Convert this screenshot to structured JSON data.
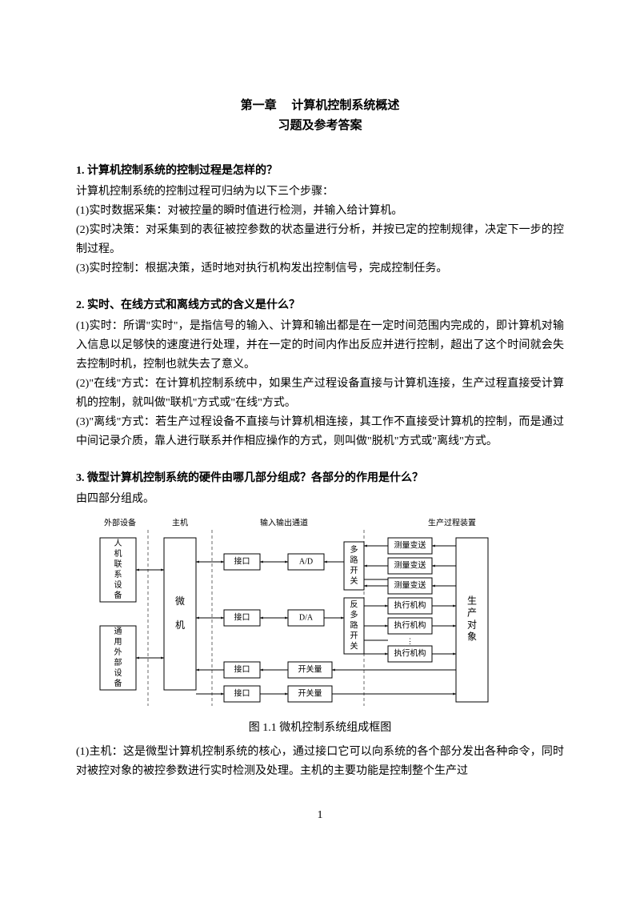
{
  "title": "第一章　 计算机控制系统概述",
  "subtitle": "习题及参考答案",
  "q1": {
    "heading": "1. 计算机控制系统的控制过程是怎样的？",
    "intro": "计算机控制系统的控制过程可归纳为以下三个步骤：",
    "l1": "(1)实时数据采集：对被控量的瞬时值进行检测，并输入给计算机。",
    "l2": "(2)实时决策：对采集到的表征被控参数的状态量进行分析，并按已定的控制规律，决定下一步的控制过程。",
    "l3": "(3)实时控制：根据决策，适时地对执行机构发出控制信号，完成控制任务。"
  },
  "q2": {
    "heading": "2. 实时、在线方式和离线方式的含义是什么？",
    "l1": "(1)实时：所谓\"实时\"，是指信号的输入、计算和输出都是在一定时间范围内完成的，即计算机对输入信息以足够快的速度进行处理，并在一定的时间内作出反应并进行控制，超出了这个时间就会失去控制时机，控制也就失去了意义。",
    "l2": "(2)\"在线\"方式：在计算机控制系统中，如果生产过程设备直接与计算机连接，生产过程直接受计算机的控制，就叫做\"联机\"方式或\"在线\"方式。",
    "l3": "(3)\"离线\"方式：若生产过程设备不直接与计算机相连接，其工作不直接受计算机的控制，而是通过中间记录介质，靠人进行联系并作相应操作的方式，则叫做\"脱机\"方式或\"离线\"方式。"
  },
  "q3": {
    "heading": "3. 微型计算机控制系统的硬件由哪几部分组成？各部分的作用是什么？",
    "intro": "由四部分组成。",
    "caption": "图 1.1 微机控制系统组成框图",
    "l1": "(1)主机：这是微型计算机控制系统的核心，通过接口它可以向系统的各个部分发出各种命令，同时对被控对象的被控参数进行实时检测及处理。主机的主要功能是控制整个生产过"
  },
  "diagram": {
    "type": "block-diagram",
    "headers": [
      "外部设备",
      "主机",
      "输入输出通道",
      "生产过程装置"
    ],
    "left_blocks": [
      "人机联系设备",
      "通用外部设备"
    ],
    "cpu": "微\n\n机",
    "io_rows": [
      {
        "if": "接口",
        "conv": "A/D"
      },
      {
        "if": "接口",
        "conv": "D/A"
      },
      {
        "if": "接口",
        "conv": "开关量"
      },
      {
        "if": "接口",
        "conv": "开关量"
      }
    ],
    "mux": [
      "多路开关",
      "反多路开关"
    ],
    "right_mid_top": [
      "测量变送",
      "测量变送",
      "测量变送"
    ],
    "right_mid_bot": [
      "执行机构",
      "执行机构",
      "执行机构"
    ],
    "right_block": "生\n产\n对\n象",
    "colors": {
      "stroke": "#000000",
      "dash": "#6a6a6a",
      "bg": "#ffffff",
      "text": "#000000"
    },
    "font_size": 10
  },
  "pagenum": "1"
}
